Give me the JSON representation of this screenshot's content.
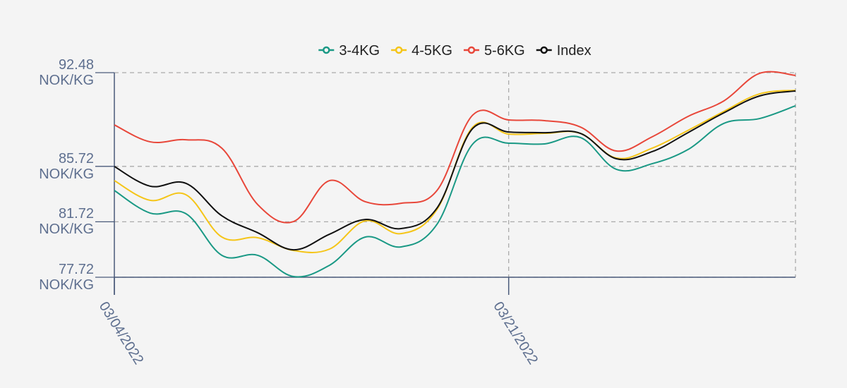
{
  "chart_data": {
    "type": "line",
    "categories": [
      "03/04/2022",
      null,
      null,
      null,
      null,
      null,
      null,
      null,
      null,
      null,
      null,
      "03/21/2022",
      null,
      null,
      null,
      null,
      null,
      null,
      null,
      null
    ],
    "series": [
      {
        "name": "3-4KG",
        "color": "#1a9985",
        "values": [
          83.98,
          82.35,
          82.3,
          79.3,
          79.3,
          77.77,
          78.58,
          80.62,
          79.91,
          81.54,
          87.34,
          87.39,
          87.34,
          87.8,
          85.51,
          85.91,
          86.93,
          88.82,
          89.17,
          90.09
        ]
      },
      {
        "name": "4-5KG",
        "color": "#f5c518",
        "values": [
          84.69,
          83.27,
          83.67,
          80.62,
          80.57,
          79.65,
          79.75,
          81.79,
          80.87,
          82.61,
          88.56,
          88.05,
          88.1,
          88.1,
          86.32,
          87.03,
          88.31,
          89.68,
          90.95,
          91.21
        ]
      },
      {
        "name": "5-6KG",
        "color": "#e8473a",
        "values": [
          88.71,
          87.49,
          87.64,
          87.03,
          82.96,
          81.74,
          84.69,
          83.17,
          83.06,
          83.98,
          89.43,
          89.07,
          89.02,
          88.56,
          86.83,
          87.85,
          89.32,
          90.44,
          92.43,
          92.28
        ]
      },
      {
        "name": "Index",
        "color": "#111111",
        "values": [
          85.71,
          84.29,
          84.49,
          82.15,
          80.93,
          79.7,
          80.82,
          81.89,
          81.23,
          82.71,
          88.46,
          88.2,
          88.15,
          88.1,
          86.27,
          86.78,
          88.15,
          89.58,
          90.8,
          91.16
        ]
      }
    ],
    "ylim": [
      77.72,
      92.48
    ],
    "yticks": [
      {
        "value": 77.72,
        "label": "77.72 NOK/KG"
      },
      {
        "value": 81.72,
        "label": "81.72 NOK/KG"
      },
      {
        "value": 85.72,
        "label": "85.72 NOK/KG"
      },
      {
        "value": 92.48,
        "label": "92.48 NOK/KG"
      }
    ],
    "grid": true,
    "legend": "top"
  }
}
